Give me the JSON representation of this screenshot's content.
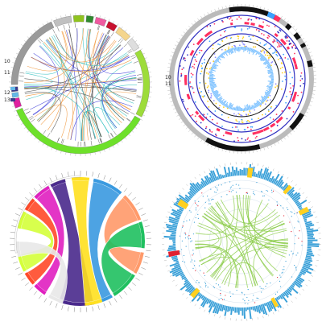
{
  "figure": {
    "caption": "",
    "panels": [
      {
        "id": "top-left",
        "style": "circos-chord",
        "left_labels": [
          "10",
          "11",
          "12",
          "13"
        ],
        "segment_colors": [
          "#a0a0a0",
          "#b8b8b8",
          "#cccccc",
          "#8fc31f",
          "#2f8a2f",
          "#e8e8e8",
          "#c8102e",
          "#ef5aa0",
          "#f4d58d",
          "#ffffff",
          "#9ddc3a",
          "#d8d8d8",
          "#63b8e8",
          "#3a3a8c",
          "#7fe03a"
        ],
        "link_colors": [
          "#3a3ad8",
          "#f09030",
          "#2ec0c0",
          "#4a4a4a"
        ]
      },
      {
        "id": "top-right",
        "style": "circos-tracks",
        "left_labels": [
          "10",
          "11"
        ],
        "track_colors": [
          "#3030c0",
          "#ff3060",
          "#40a0ff",
          "#ffd020",
          "#202020",
          "#9090ff"
        ]
      },
      {
        "id": "bottom-left",
        "style": "ribbon-chord",
        "ribbon_colors": [
          "#d4ff3a",
          "#ff4a2a",
          "#e020c0",
          "#4a2a8c",
          "#ffe020",
          "#3a9ae0",
          "#ff9a6a",
          "#20c060",
          "#ffb8a0"
        ]
      },
      {
        "id": "bottom-right",
        "style": "circos-genome",
        "histogram_color": "#3aa0d8",
        "link_color": "#8ccc4a",
        "highlight_color": "#ffd020"
      }
    ]
  }
}
